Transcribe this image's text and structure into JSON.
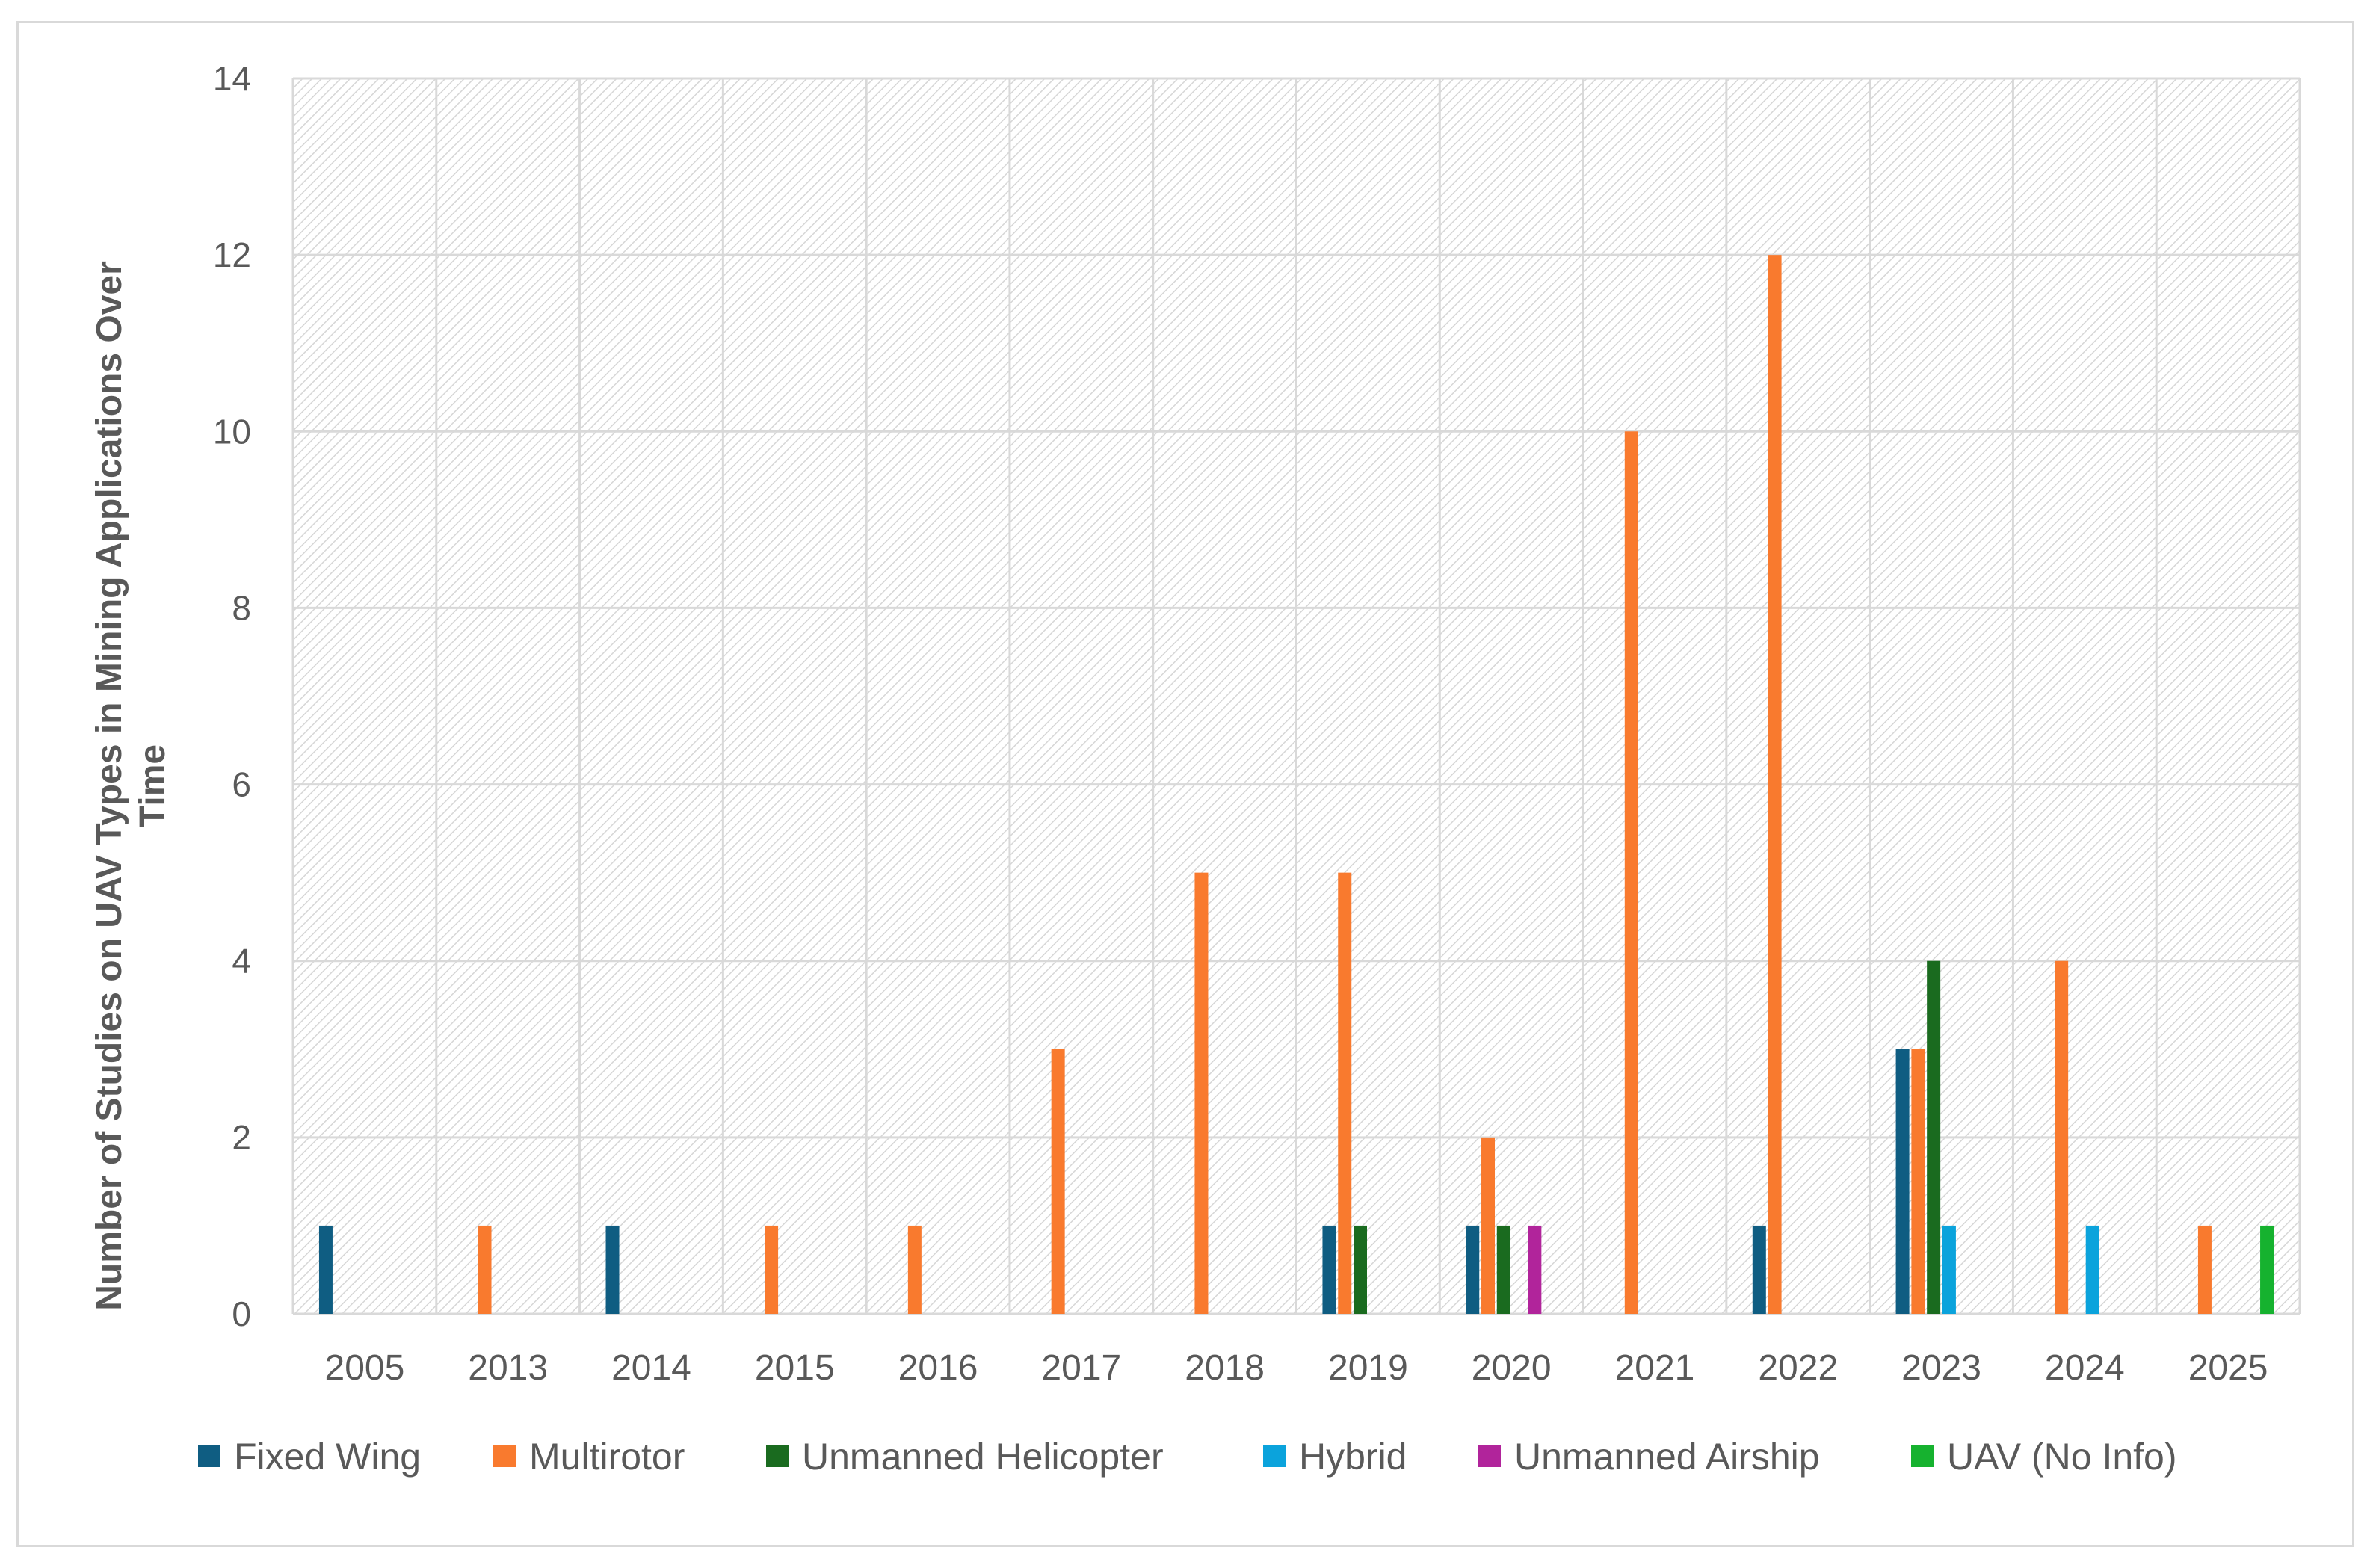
{
  "chart_data": {
    "type": "bar",
    "title": "",
    "xlabel": "",
    "ylabel": "Number of Studies on UAV Types in Mining Applications Over Time",
    "ylim": [
      0,
      14
    ],
    "yticks": [
      0,
      2,
      4,
      6,
      8,
      10,
      12,
      14
    ],
    "grid": true,
    "legend_position": "bottom",
    "categories": [
      "2005",
      "2013",
      "2014",
      "2015",
      "2016",
      "2017",
      "2018",
      "2019",
      "2020",
      "2021",
      "2022",
      "2023",
      "2024",
      "2025"
    ],
    "series": [
      {
        "name": "Fixed Wing",
        "color": "#0f5d82",
        "values": [
          1,
          0,
          1,
          0,
          0,
          0,
          0,
          1,
          1,
          0,
          1,
          3,
          0,
          0
        ]
      },
      {
        "name": "Multirotor",
        "color": "#f97a2e",
        "values": [
          0,
          1,
          0,
          1,
          1,
          3,
          5,
          5,
          2,
          10,
          12,
          3,
          4,
          1
        ]
      },
      {
        "name": "Unmanned Helicopter",
        "color": "#1a6b1f",
        "values": [
          0,
          0,
          0,
          0,
          0,
          0,
          0,
          1,
          1,
          0,
          0,
          4,
          0,
          0
        ]
      },
      {
        "name": "Hybrid",
        "color": "#0ba3dc",
        "values": [
          0,
          0,
          0,
          0,
          0,
          0,
          0,
          0,
          0,
          0,
          0,
          1,
          1,
          0
        ]
      },
      {
        "name": "Unmanned Airship",
        "color": "#b1249b",
        "values": [
          0,
          0,
          0,
          0,
          0,
          0,
          0,
          0,
          1,
          0,
          0,
          0,
          0,
          0
        ]
      },
      {
        "name": "UAV (No Info)",
        "color": "#16b22f",
        "values": [
          0,
          0,
          0,
          0,
          0,
          0,
          0,
          0,
          0,
          0,
          0,
          0,
          0,
          1
        ]
      }
    ]
  }
}
